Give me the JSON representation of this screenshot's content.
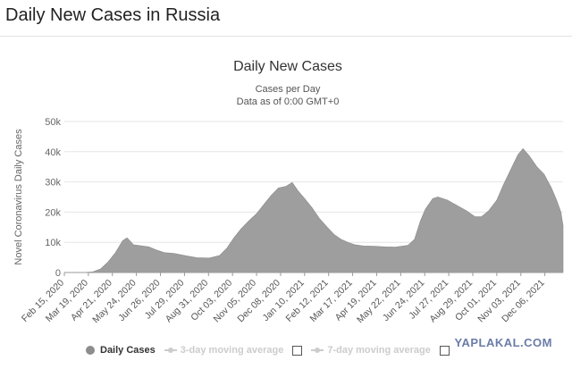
{
  "page": {
    "heading": "Daily New Cases in Russia"
  },
  "watermark": "YAPLAKAL.COM",
  "legend": {
    "items": [
      {
        "label": "Daily Cases",
        "active": true
      },
      {
        "label": "3-day moving average",
        "active": false
      },
      {
        "label": "7-day moving average",
        "active": false
      }
    ]
  },
  "colors": {
    "area": "#9e9e9e",
    "grid": "#e6e6e6",
    "axis": "#666666"
  },
  "chart_data": {
    "type": "area",
    "title": "Daily New Cases",
    "subtitle_lines": [
      "Cases per Day",
      "Data as of 0:00 GMT+0"
    ],
    "xlabel": "",
    "ylabel": "Novel Coronavirus Daily Cases",
    "ylim": [
      0,
      50000
    ],
    "y_ticks": [
      0,
      10000,
      20000,
      30000,
      40000,
      50000
    ],
    "y_tick_labels": [
      "0",
      "10k",
      "20k",
      "30k",
      "40k",
      "50k"
    ],
    "x_range": [
      "2020-02-15",
      "2021-12-31"
    ],
    "x_ticks": [
      {
        "date": "2020-02-15",
        "label": "Feb 15, 2020"
      },
      {
        "date": "2020-03-19",
        "label": "Mar 19, 2020"
      },
      {
        "date": "2020-04-21",
        "label": "Apr 21, 2020"
      },
      {
        "date": "2020-05-24",
        "label": "May 24, 2020"
      },
      {
        "date": "2020-06-26",
        "label": "Jun 26, 2020"
      },
      {
        "date": "2020-07-29",
        "label": "Jul 29, 2020"
      },
      {
        "date": "2020-08-31",
        "label": "Aug 31, 2020"
      },
      {
        "date": "2020-10-03",
        "label": "Oct 03, 2020"
      },
      {
        "date": "2020-11-05",
        "label": "Nov 05, 2020"
      },
      {
        "date": "2020-12-08",
        "label": "Dec 08, 2020"
      },
      {
        "date": "2021-01-10",
        "label": "Jan 10, 2021"
      },
      {
        "date": "2021-02-12",
        "label": "Feb 12, 2021"
      },
      {
        "date": "2021-03-17",
        "label": "Mar 17, 2021"
      },
      {
        "date": "2021-04-19",
        "label": "Apr 19, 2021"
      },
      {
        "date": "2021-05-22",
        "label": "May 22, 2021"
      },
      {
        "date": "2021-06-24",
        "label": "Jun 24, 2021"
      },
      {
        "date": "2021-07-27",
        "label": "Jul 27, 2021"
      },
      {
        "date": "2021-08-29",
        "label": "Aug 29, 2021"
      },
      {
        "date": "2021-10-01",
        "label": "Oct 01, 2021"
      },
      {
        "date": "2021-11-03",
        "label": "Nov 03, 2021"
      },
      {
        "date": "2021-12-06",
        "label": "Dec 06, 2021"
      }
    ],
    "series": [
      {
        "points": [
          [
            "2020-02-15",
            0
          ],
          [
            "2020-03-10",
            0
          ],
          [
            "2020-03-25",
            200
          ],
          [
            "2020-04-05",
            1200
          ],
          [
            "2020-04-15",
            3500
          ],
          [
            "2020-04-25",
            6500
          ],
          [
            "2020-05-05",
            10500
          ],
          [
            "2020-05-11",
            11500
          ],
          [
            "2020-05-20",
            9200
          ],
          [
            "2020-06-01",
            8800
          ],
          [
            "2020-06-10",
            8500
          ],
          [
            "2020-06-20",
            7500
          ],
          [
            "2020-07-01",
            6600
          ],
          [
            "2020-07-15",
            6300
          ],
          [
            "2020-08-01",
            5500
          ],
          [
            "2020-08-15",
            4900
          ],
          [
            "2020-09-01",
            4800
          ],
          [
            "2020-09-15",
            5600
          ],
          [
            "2020-09-25",
            8000
          ],
          [
            "2020-10-05",
            11500
          ],
          [
            "2020-10-15",
            14500
          ],
          [
            "2020-10-25",
            17000
          ],
          [
            "2020-11-05",
            19500
          ],
          [
            "2020-11-15",
            22500
          ],
          [
            "2020-11-25",
            25500
          ],
          [
            "2020-12-05",
            28000
          ],
          [
            "2020-12-15",
            28500
          ],
          [
            "2020-12-24",
            29800
          ],
          [
            "2021-01-01",
            27000
          ],
          [
            "2021-01-10",
            24500
          ],
          [
            "2021-01-20",
            21500
          ],
          [
            "2021-01-30",
            18000
          ],
          [
            "2021-02-10",
            15000
          ],
          [
            "2021-02-20",
            12500
          ],
          [
            "2021-03-01",
            11000
          ],
          [
            "2021-03-10",
            10000
          ],
          [
            "2021-03-20",
            9200
          ],
          [
            "2021-04-01",
            8800
          ],
          [
            "2021-04-15",
            8700
          ],
          [
            "2021-05-01",
            8500
          ],
          [
            "2021-05-15",
            8400
          ],
          [
            "2021-06-01",
            9000
          ],
          [
            "2021-06-10",
            11000
          ],
          [
            "2021-06-18",
            17000
          ],
          [
            "2021-06-25",
            21000
          ],
          [
            "2021-07-05",
            24500
          ],
          [
            "2021-07-12",
            25000
          ],
          [
            "2021-07-25",
            24000
          ],
          [
            "2021-08-05",
            22500
          ],
          [
            "2021-08-20",
            20500
          ],
          [
            "2021-09-01",
            18500
          ],
          [
            "2021-09-10",
            18500
          ],
          [
            "2021-09-20",
            20500
          ],
          [
            "2021-10-01",
            24000
          ],
          [
            "2021-10-10",
            29000
          ],
          [
            "2021-10-20",
            34000
          ],
          [
            "2021-10-30",
            39000
          ],
          [
            "2021-11-06",
            41000
          ],
          [
            "2021-11-15",
            38500
          ],
          [
            "2021-11-25",
            35000
          ],
          [
            "2021-12-05",
            32500
          ],
          [
            "2021-12-15",
            28000
          ],
          [
            "2021-12-22",
            24000
          ],
          [
            "2021-12-28",
            20000
          ],
          [
            "2021-12-31",
            15500
          ]
        ]
      }
    ]
  }
}
